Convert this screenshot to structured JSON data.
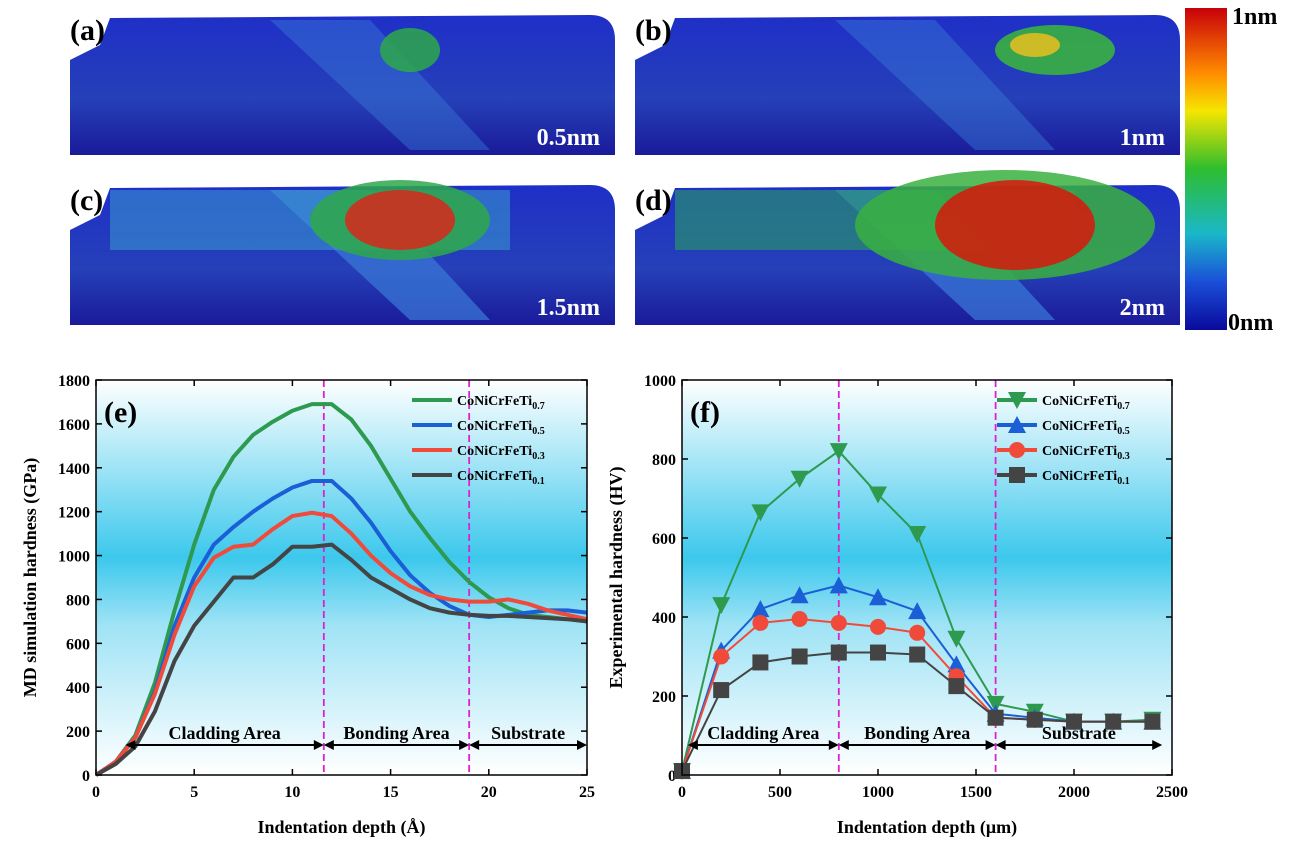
{
  "images": [
    {
      "label": "(a)",
      "scale": "0.5nm"
    },
    {
      "label": "(b)",
      "scale": "1nm"
    },
    {
      "label": "(c)",
      "scale": "1.5nm"
    },
    {
      "label": "(d)",
      "scale": "2nm"
    }
  ],
  "colorbar": {
    "max": "1nm",
    "min": "0nm"
  },
  "chart_data": [
    {
      "type": "line",
      "panel": "(e)",
      "xlabel": "Indentation depth (Å)",
      "ylabel": "MD simulation hardness (GPa)",
      "xlim": [
        0,
        25
      ],
      "xticks": [
        0,
        5,
        10,
        15,
        20,
        25
      ],
      "ylim": [
        0,
        1800
      ],
      "yticks": [
        0,
        200,
        400,
        600,
        800,
        1000,
        1200,
        1400,
        1600,
        1800
      ],
      "x": [
        0,
        1,
        2,
        3,
        4,
        5,
        6,
        7,
        8,
        9,
        10,
        11,
        12,
        13,
        14,
        15,
        16,
        17,
        18,
        19,
        20,
        21,
        22,
        23,
        24,
        25
      ],
      "series": [
        {
          "name": "CoNiCrFeTi0.7",
          "color": "#2e9a4f",
          "values": [
            0,
            60,
            180,
            420,
            750,
            1050,
            1300,
            1450,
            1550,
            1610,
            1660,
            1690,
            1690,
            1620,
            1500,
            1350,
            1200,
            1080,
            970,
            880,
            810,
            760,
            730,
            720,
            710,
            700
          ]
        },
        {
          "name": "CoNiCrFeTi0.5",
          "color": "#1a5fd6",
          "values": [
            0,
            60,
            170,
            380,
            680,
            900,
            1050,
            1130,
            1200,
            1260,
            1310,
            1340,
            1340,
            1260,
            1150,
            1020,
            910,
            830,
            770,
            730,
            720,
            730,
            740,
            750,
            750,
            740
          ]
        },
        {
          "name": "CoNiCrFeTi0.3",
          "color": "#f04a3a",
          "values": [
            0,
            60,
            170,
            370,
            640,
            860,
            990,
            1040,
            1050,
            1120,
            1180,
            1195,
            1180,
            1100,
            1000,
            920,
            860,
            820,
            800,
            790,
            790,
            800,
            780,
            750,
            730,
            710
          ]
        },
        {
          "name": "CoNiCrFeTi0.1",
          "color": "#444444",
          "values": [
            0,
            50,
            130,
            290,
            520,
            680,
            790,
            900,
            900,
            960,
            1040,
            1040,
            1050,
            980,
            900,
            850,
            800,
            760,
            740,
            730,
            725,
            725,
            720,
            715,
            710,
            700
          ]
        }
      ],
      "vlines": [
        11.6,
        19
      ],
      "regions": [
        {
          "label": "Cladding Area",
          "start": 1.5,
          "end": 11.6
        },
        {
          "label": "Bonding Area",
          "start": 11.6,
          "end": 19
        },
        {
          "label": "Substrate",
          "start": 19,
          "end": 25
        }
      ]
    },
    {
      "type": "line",
      "panel": "(f)",
      "xlabel": "Indentation depth (μm)",
      "ylabel": "Experimental hardness (HV)",
      "xlim": [
        0,
        2500
      ],
      "xticks": [
        0,
        500,
        1000,
        1500,
        2000,
        2500
      ],
      "ylim": [
        0,
        1000
      ],
      "yticks": [
        0,
        200,
        400,
        600,
        800,
        1000
      ],
      "x": [
        0,
        200,
        400,
        600,
        800,
        1000,
        1200,
        1400,
        1600,
        1800,
        2000,
        2200,
        2400
      ],
      "series": [
        {
          "name": "CoNiCrFeTi0.7",
          "color": "#2e9a4f",
          "marker": "down-triangle",
          "values": [
            10,
            430,
            665,
            750,
            820,
            710,
            610,
            345,
            180,
            160,
            135,
            135,
            140
          ]
        },
        {
          "name": "CoNiCrFeTi0.5",
          "color": "#1a5fd6",
          "marker": "triangle",
          "values": [
            10,
            315,
            420,
            455,
            480,
            450,
            415,
            280,
            155,
            145,
            135,
            135,
            135
          ]
        },
        {
          "name": "CoNiCrFeTi0.3",
          "color": "#f04a3a",
          "marker": "circle",
          "values": [
            10,
            300,
            385,
            395,
            385,
            375,
            360,
            250,
            145,
            140,
            135,
            135,
            135
          ]
        },
        {
          "name": "CoNiCrFeTi0.1",
          "color": "#444444",
          "marker": "square",
          "values": [
            10,
            215,
            285,
            300,
            310,
            310,
            305,
            225,
            145,
            140,
            135,
            135,
            135
          ]
        }
      ],
      "vlines": [
        800,
        1600
      ],
      "regions": [
        {
          "label": "Cladding Area",
          "start": 30,
          "end": 800
        },
        {
          "label": "Bonding Area",
          "start": 800,
          "end": 1600
        },
        {
          "label": "Substrate",
          "start": 1600,
          "end": 2450
        }
      ]
    }
  ]
}
